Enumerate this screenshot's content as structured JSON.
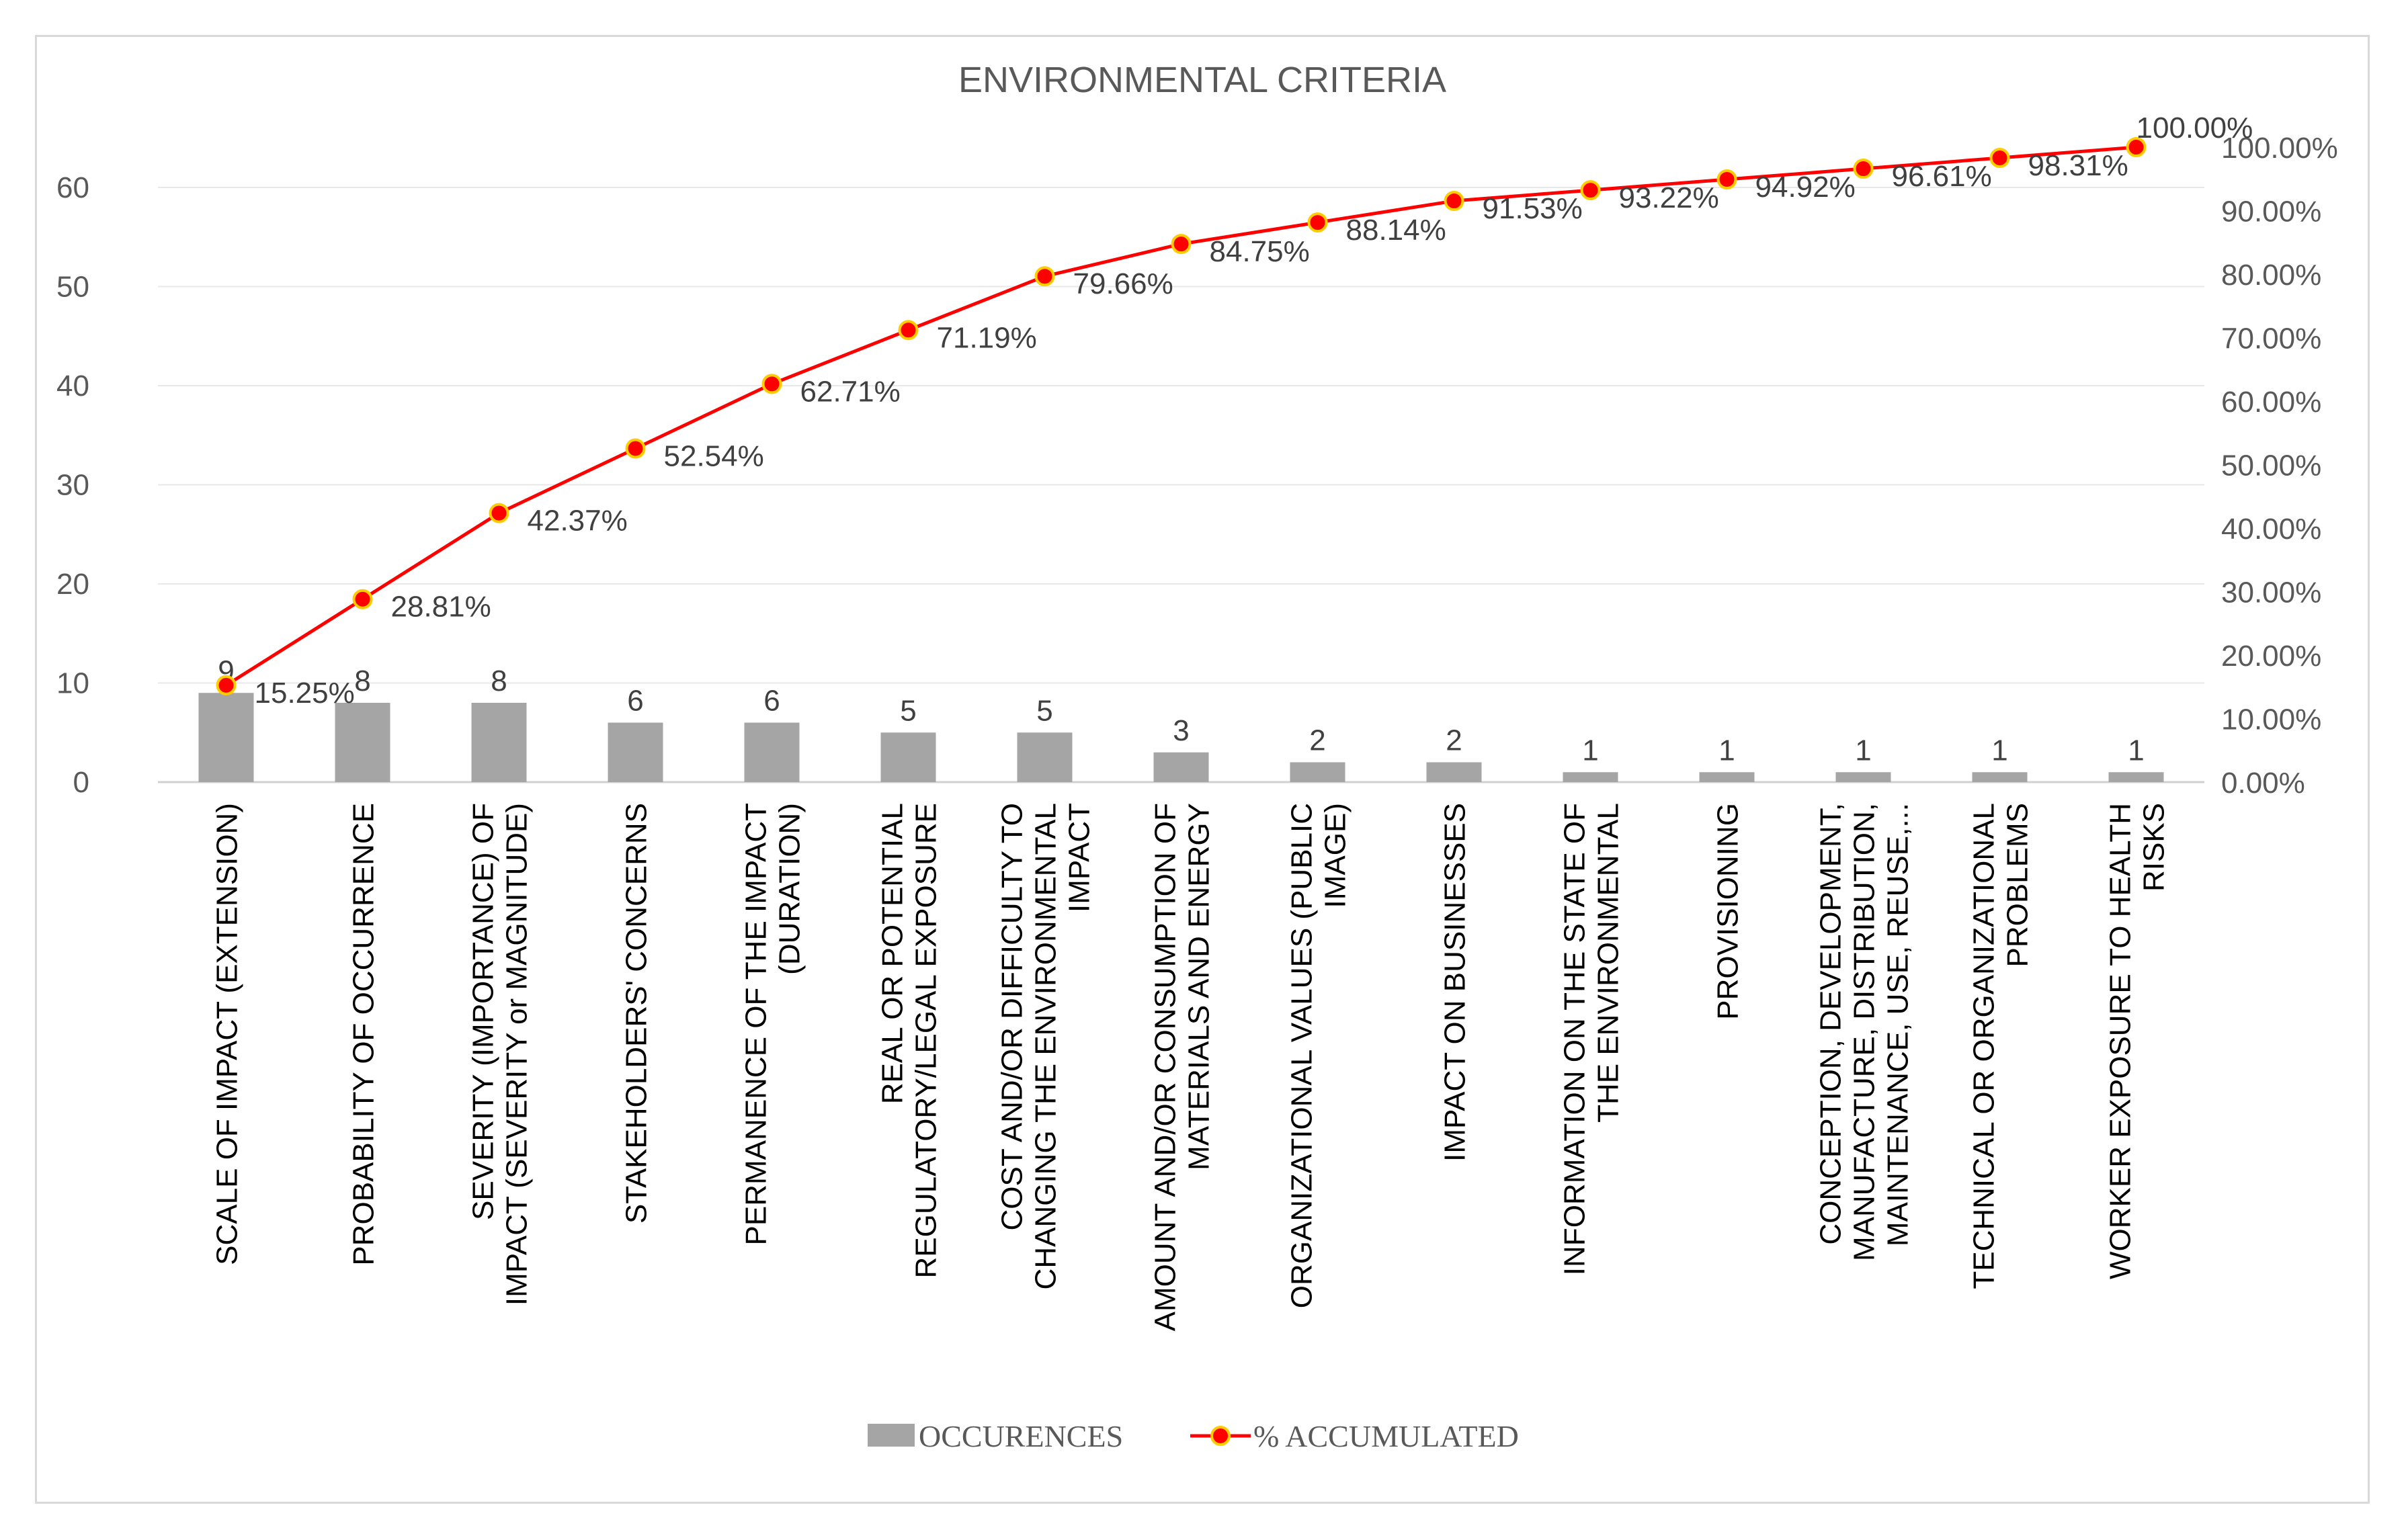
{
  "chart_data": {
    "type": "bar+line",
    "title": "ENVIRONMENTAL CRITERIA",
    "categories": [
      [
        "SCALE OF IMPACT (EXTENSION)"
      ],
      [
        "PROBABILITY OF OCCURRENCE"
      ],
      [
        "SEVERITY (IMPORTANCE) OF",
        "IMPACT (SEVERITY or MAGNITUDE)"
      ],
      [
        "STAKEHOLDERS' CONCERNS"
      ],
      [
        "PERMANENCE OF THE IMPACT",
        "(DURATION)"
      ],
      [
        "REAL OR POTENTIAL",
        "REGULATORY/LEGAL EXPOSURE"
      ],
      [
        "COST AND/OR DIFFICULTY TO",
        "CHANGING THE ENVIRONMENTAL",
        "IMPACT"
      ],
      [
        "AMOUNT AND/OR CONSUMPTION OF",
        "MATERIALS AND ENERGY"
      ],
      [
        "ORGANIZATIONAL VALUES (PUBLIC",
        "IMAGE)"
      ],
      [
        "IMPACT ON BUSINESSES"
      ],
      [
        "INFORMATION ON THE STATE OF",
        "THE ENVIRONMENTAL"
      ],
      [
        "PROVISIONING"
      ],
      [
        "CONCEPTION, DEVELOPMENT,",
        "MANUFACTURE, DISTRIBUTION,",
        "MAINTENANCE, USE, REUSE,..."
      ],
      [
        "TECHNICAL OR ORGANIZATIONAL",
        "PROBLEMS"
      ],
      [
        "WORKER EXPOSURE TO HEALTH",
        "RISKS"
      ]
    ],
    "series": [
      {
        "name": "OCCURENCES",
        "type": "bar",
        "axis": "left",
        "color": "#a5a5a5",
        "values": [
          9,
          8,
          8,
          6,
          6,
          5,
          5,
          3,
          2,
          2,
          1,
          1,
          1,
          1,
          1
        ],
        "labels": [
          "9",
          "8",
          "8",
          "6",
          "6",
          "5",
          "5",
          "3",
          "2",
          "2",
          "1",
          "1",
          "1",
          "1",
          "1"
        ]
      },
      {
        "name": "% ACCUMULATED",
        "type": "line",
        "axis": "right",
        "color": "#ff0000",
        "values": [
          15.25,
          28.81,
          42.37,
          52.54,
          62.71,
          71.19,
          79.66,
          84.75,
          88.14,
          91.53,
          93.22,
          94.92,
          96.61,
          98.31,
          100.0
        ],
        "labels": [
          "15.25%",
          "28.81%",
          "42.37%",
          "52.54%",
          "62.71%",
          "71.19%",
          "79.66%",
          "84.75%",
          "88.14%",
          "91.53%",
          "93.22%",
          "94.92%",
          "96.61%",
          "98.31%",
          "100.00%"
        ]
      }
    ],
    "y_left": {
      "min": 0,
      "max": 60,
      "ticks": [
        "0",
        "10",
        "20",
        "30",
        "40",
        "50",
        "60"
      ]
    },
    "y_right": {
      "min": 0,
      "max": 100,
      "ticks": [
        "0.00%",
        "10.00%",
        "20.00%",
        "30.00%",
        "40.00%",
        "50.00%",
        "60.00%",
        "70.00%",
        "80.00%",
        "90.00%",
        "100.00%"
      ]
    },
    "grid": true,
    "legend": "bottom"
  }
}
